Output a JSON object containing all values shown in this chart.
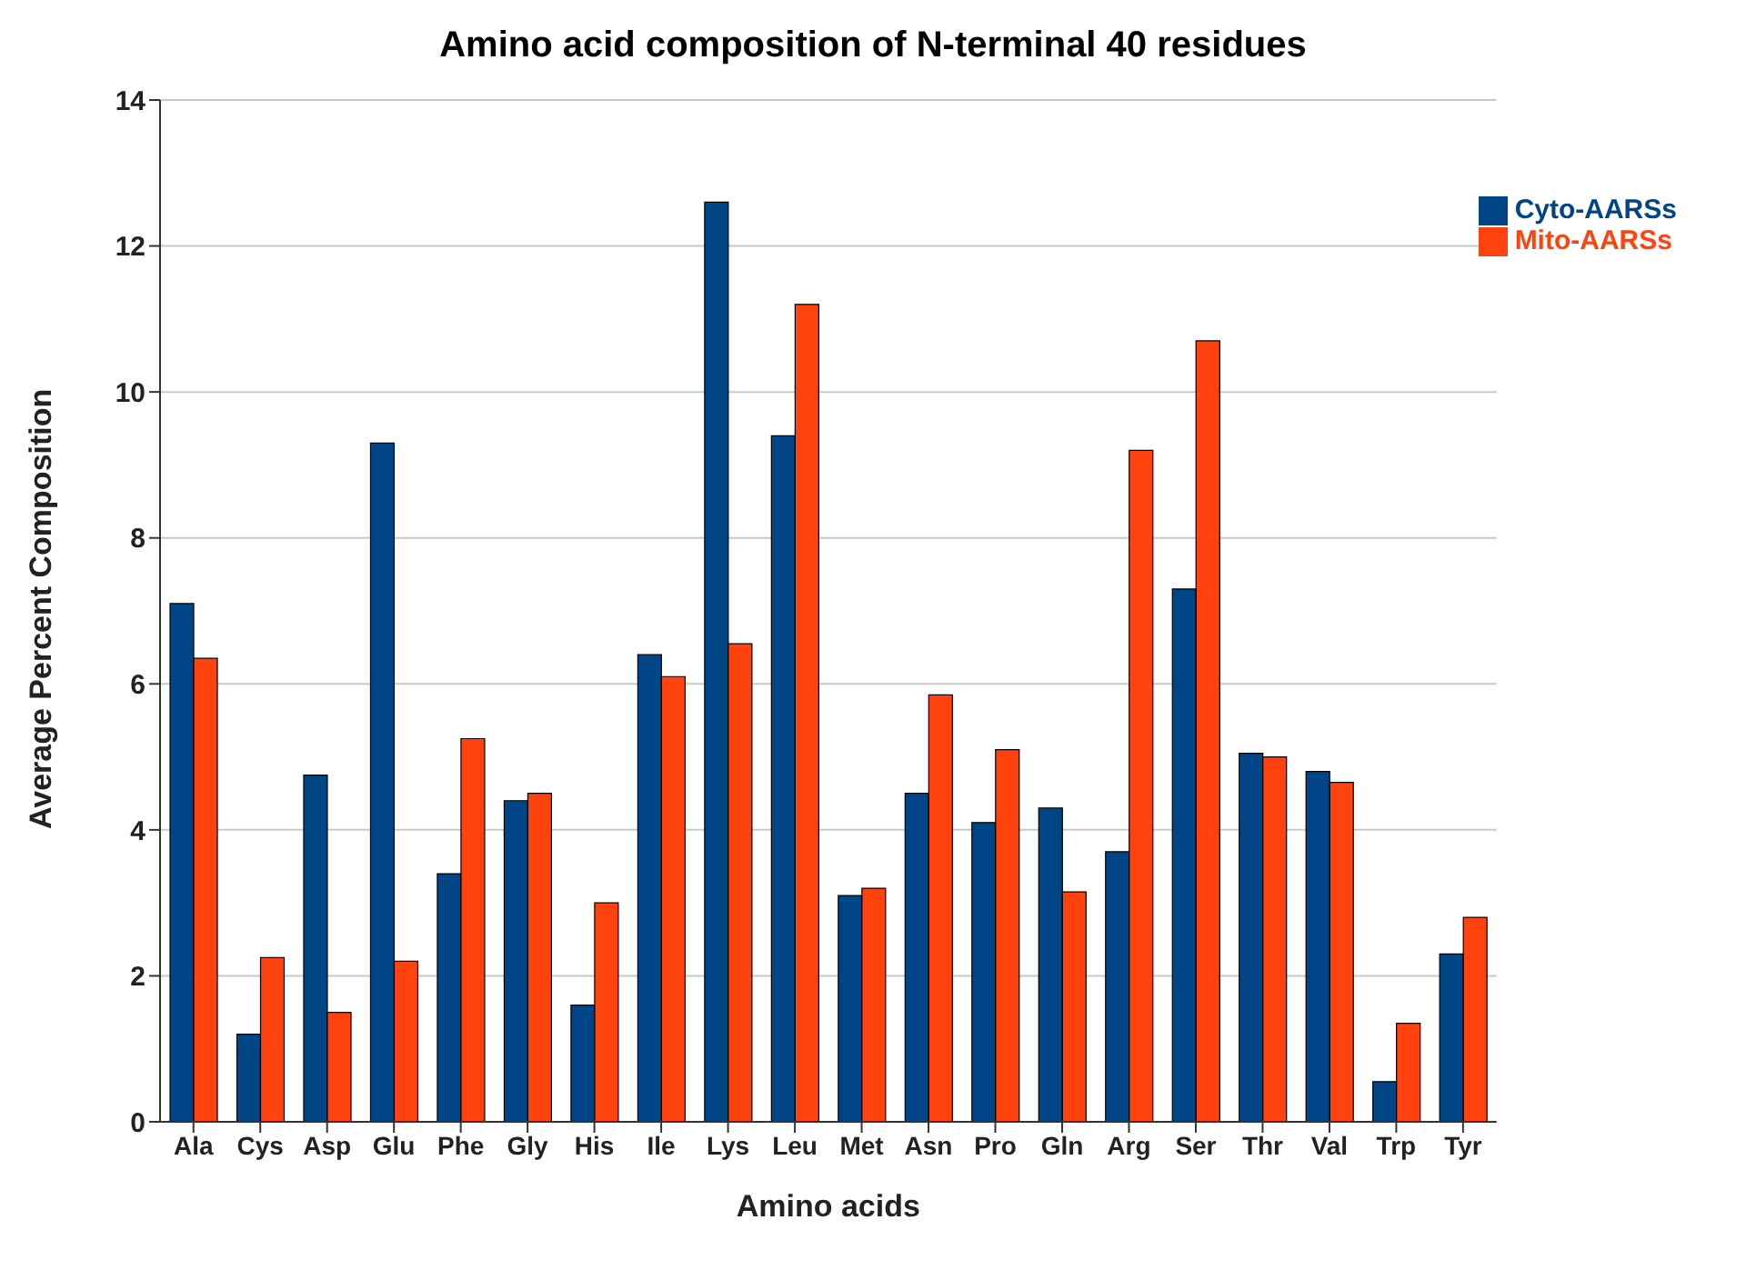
{
  "chart_data": {
    "type": "bar",
    "title": "Amino acid composition of N-terminal 40 residues",
    "xlabel": "Amino acids",
    "ylabel": "Average Percent Composition",
    "categories": [
      "Ala",
      "Cys",
      "Asp",
      "Glu",
      "Phe",
      "Gly",
      "His",
      "Ile",
      "Lys",
      "Leu",
      "Met",
      "Asn",
      "Pro",
      "Gln",
      "Arg",
      "Ser",
      "Thr",
      "Val",
      "Trp",
      "Tyr"
    ],
    "series": [
      {
        "name": "Cyto-AARSs",
        "color": "#004586",
        "values": [
          7.1,
          1.2,
          4.75,
          9.3,
          3.4,
          4.4,
          1.6,
          6.4,
          12.6,
          9.4,
          3.1,
          4.5,
          4.1,
          4.3,
          3.7,
          7.3,
          5.05,
          4.8,
          0.55,
          2.3
        ]
      },
      {
        "name": "Mito-AARSs",
        "color": "#ff420e",
        "values": [
          6.35,
          2.25,
          1.5,
          2.2,
          5.25,
          4.5,
          3.0,
          6.1,
          6.55,
          11.2,
          3.2,
          5.85,
          5.1,
          3.15,
          9.2,
          10.7,
          5.0,
          4.65,
          1.35,
          2.8
        ]
      }
    ],
    "ylim": [
      0,
      14
    ],
    "yticks": [
      0,
      2,
      4,
      6,
      8,
      10,
      12,
      14
    ],
    "grid": "y",
    "legend": "top right"
  }
}
